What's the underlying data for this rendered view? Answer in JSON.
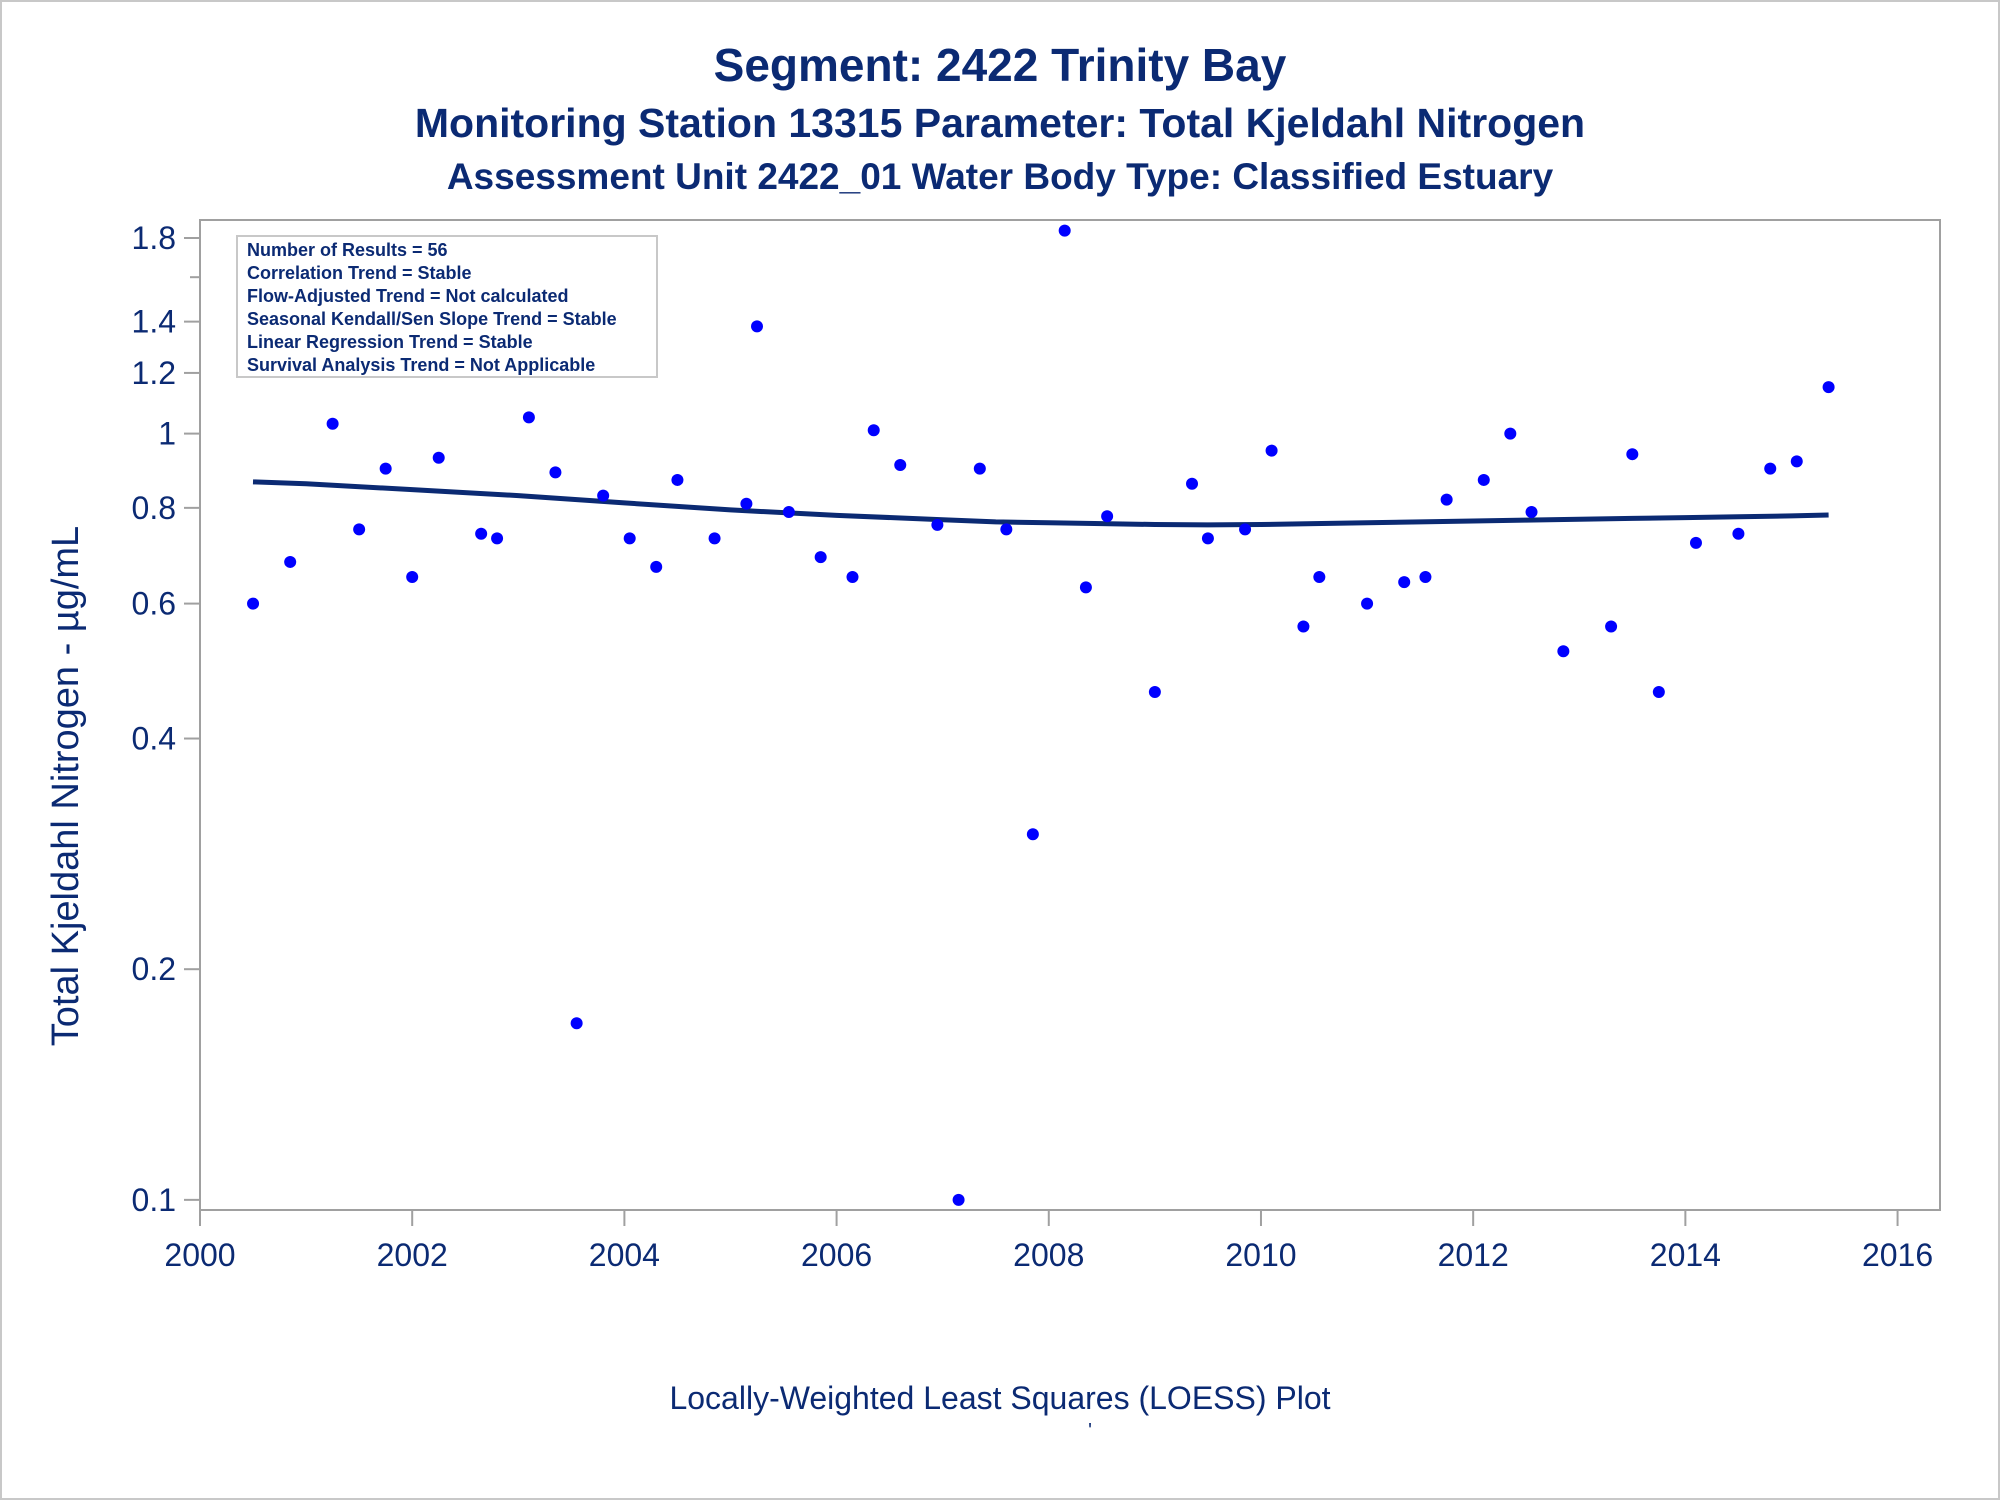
{
  "title": "Segment: 2422  Trinity Bay",
  "subtitle": "Monitoring Station 13315 Parameter: Total Kjeldahl Nitrogen",
  "subtitle2": "Assessment Unit 2422_01   Water Body Type: Classified Estuary",
  "footer": "Locally-Weighted Least Squares (LOESS) Plot",
  "footer_mark": "'",
  "legend": [
    "Number of Results = 56",
    "Correlation Trend = Stable",
    "Flow-Adjusted Trend = Not calculated",
    "Seasonal Kendall/Sen Slope Trend = Stable",
    "Linear Regression Trend = Stable",
    "Survival Analysis Trend = Not Applicable"
  ],
  "colors": {
    "text": "#0b2a73",
    "points": "#0000ff",
    "line": "#0b2a73",
    "frame": "#a0a0a0"
  },
  "chart_data": {
    "type": "scatter",
    "ylabel": "Total Kjeldahl Nitrogen -  µg/mL",
    "xlabel": "",
    "x_scale": "linear",
    "y_scale": "log",
    "xlim": [
      2000,
      2016.4
    ],
    "ylim": [
      0.097,
      1.9
    ],
    "x_ticks": [
      2000,
      2002,
      2004,
      2006,
      2008,
      2010,
      2012,
      2014,
      2016
    ],
    "x_tick_labels": [
      "2000",
      "2002",
      "2004",
      "2006",
      "2008",
      "2010",
      "2012",
      "2014",
      "2016"
    ],
    "y_ticks": [
      0.1,
      0.2,
      0.4,
      0.6,
      0.8,
      1,
      1.2,
      1.4,
      1.8
    ],
    "y_tick_labels": [
      "0.1",
      "0.2",
      "0.4",
      "0.6",
      "0.8",
      "1",
      "1.2",
      "1.4",
      "1.8"
    ],
    "y_minor_ticks": [
      1.6
    ],
    "grid": false,
    "legend_position": "top-left",
    "series": [
      {
        "type": "scatter",
        "x": [
          2000.5,
          2000.85,
          2001.05,
          2001.25,
          2001.5,
          2001.75,
          2002.0,
          2002.25,
          2002.65,
          2002.8,
          2003.1,
          2003.35,
          2003.55,
          2003.8,
          2004.05,
          2004.3,
          2004.5,
          2004.85,
          2005.15,
          2005.25,
          2005.55,
          2005.85,
          2006.15,
          2006.35,
          2006.6,
          2006.95,
          2007.15,
          2007.35,
          2007.6,
          2007.85,
          2008.15,
          2008.35,
          2008.55,
          2009.0,
          2009.35,
          2009.5,
          2009.85,
          2010.1,
          2010.4,
          2010.55,
          2011.0,
          2011.35,
          2011.55,
          2011.75,
          2012.1,
          2012.35,
          2012.55,
          2012.85,
          2013.3,
          2013.5,
          2013.75,
          2014.1,
          2014.5,
          2014.8,
          2015.05,
          2015.35
        ],
        "y": [
          0.6,
          0.68,
          1.58,
          1.03,
          0.75,
          0.9,
          0.65,
          0.93,
          0.74,
          0.73,
          1.05,
          0.89,
          0.17,
          0.83,
          0.73,
          0.67,
          0.87,
          0.73,
          0.81,
          1.38,
          0.79,
          0.69,
          0.65,
          1.01,
          0.91,
          0.76,
          0.1,
          0.9,
          0.75,
          0.3,
          1.84,
          0.63,
          0.78,
          0.46,
          0.86,
          0.73,
          0.75,
          0.95,
          0.56,
          0.65,
          0.6,
          0.64,
          0.65,
          0.82,
          0.87,
          1.0,
          0.79,
          0.52,
          0.56,
          0.94,
          0.46,
          0.72,
          0.74,
          0.9,
          0.92,
          1.15
        ]
      },
      {
        "type": "line",
        "x": [
          2000.5,
          2001.0,
          2002.0,
          2003.0,
          2004.0,
          2005.0,
          2006.0,
          2007.0,
          2007.5,
          2008.0,
          2008.5,
          2009.0,
          2009.5,
          2010.0,
          2010.5,
          2011.0,
          2011.5,
          2012.0,
          2012.5,
          2013.0,
          2013.5,
          2014.0,
          2014.5,
          2015.0,
          2015.35
        ],
        "y": [
          0.865,
          0.86,
          0.845,
          0.83,
          0.812,
          0.795,
          0.782,
          0.772,
          0.767,
          0.765,
          0.763,
          0.761,
          0.76,
          0.761,
          0.763,
          0.765,
          0.767,
          0.769,
          0.771,
          0.773,
          0.775,
          0.777,
          0.779,
          0.781,
          0.783
        ]
      }
    ]
  }
}
